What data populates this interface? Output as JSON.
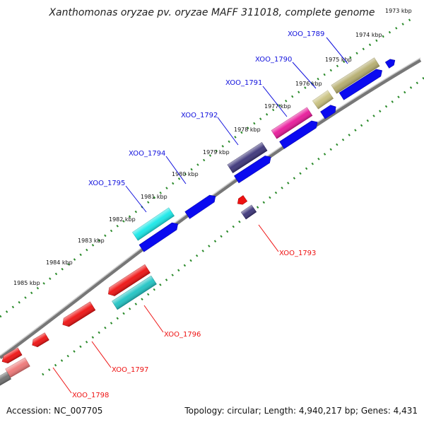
{
  "title": "Xanthomonas oryzae pv. oryzae MAFF 311018, complete genome",
  "footer": {
    "accession": "Accession: NC_007705",
    "summary": "Topology: circular; Length: 4,940,217 bp; Genes: 4,431"
  },
  "colors": {
    "backbone": "#888888",
    "tick_major": "#2a8a2a",
    "tick_minor": "#2a8a2a",
    "label_forward": "#1010dd",
    "label_reverse": "#ee1111",
    "leader_forward": "#1010dd",
    "leader_reverse": "#ee1111"
  },
  "kbp_labels": [
    "1973 kbp",
    "1974 kbp",
    "1975 kbp",
    "1976 kbp",
    "1977 kbp",
    "1978 kbp",
    "1979 kbp",
    "1980 kbp",
    "1981 kbp",
    "1982 kbp",
    "1983 kbp",
    "1984 kbp",
    "1985 kbp"
  ],
  "forward_labels": [
    "XOO_1789",
    "XOO_1790",
    "XOO_1791",
    "XOO_1792",
    "XOO_1794",
    "XOO_1795"
  ],
  "reverse_labels": [
    "XOO_1793",
    "XOO_1796",
    "XOO_1797",
    "XOO_1798"
  ],
  "genes": [
    {
      "name": "XOO_1789",
      "strand": "forward",
      "color": "#b5ad6e"
    },
    {
      "name": "XOO_1790",
      "strand": "forward",
      "color": "#c8c07e"
    },
    {
      "name": "XOO_1791",
      "strand": "forward",
      "color": "#e8189a"
    },
    {
      "name": "XOO_1792",
      "strand": "forward",
      "color": "#3c3479"
    },
    {
      "name": "XOO_1795",
      "strand": "forward",
      "color": "#18e8e8"
    },
    {
      "name": "XOO_1793",
      "strand": "reverse",
      "color": "#3c3479"
    },
    {
      "name": "XOO_1796",
      "strand": "reverse",
      "color": "#20c4c4"
    },
    {
      "name": "XOO_1797",
      "strand": "reverse",
      "color": "#ee1111"
    },
    {
      "name": "XOO_1798",
      "strand": "reverse",
      "color": "#ee7777"
    }
  ]
}
